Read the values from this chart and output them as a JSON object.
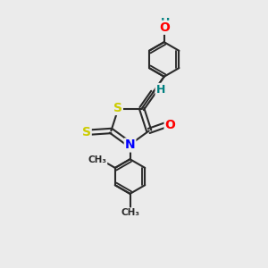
{
  "background_color": "#ebebeb",
  "bond_color": "#2a2a2a",
  "atom_colors": {
    "S": "#cccc00",
    "N": "#0000ff",
    "O": "#ff0000",
    "H_teal": "#008080"
  },
  "line_width": 1.5,
  "figsize": [
    3.0,
    3.0
  ],
  "dpi": 100,
  "xlim": [
    0,
    10
  ],
  "ylim": [
    0,
    10
  ]
}
